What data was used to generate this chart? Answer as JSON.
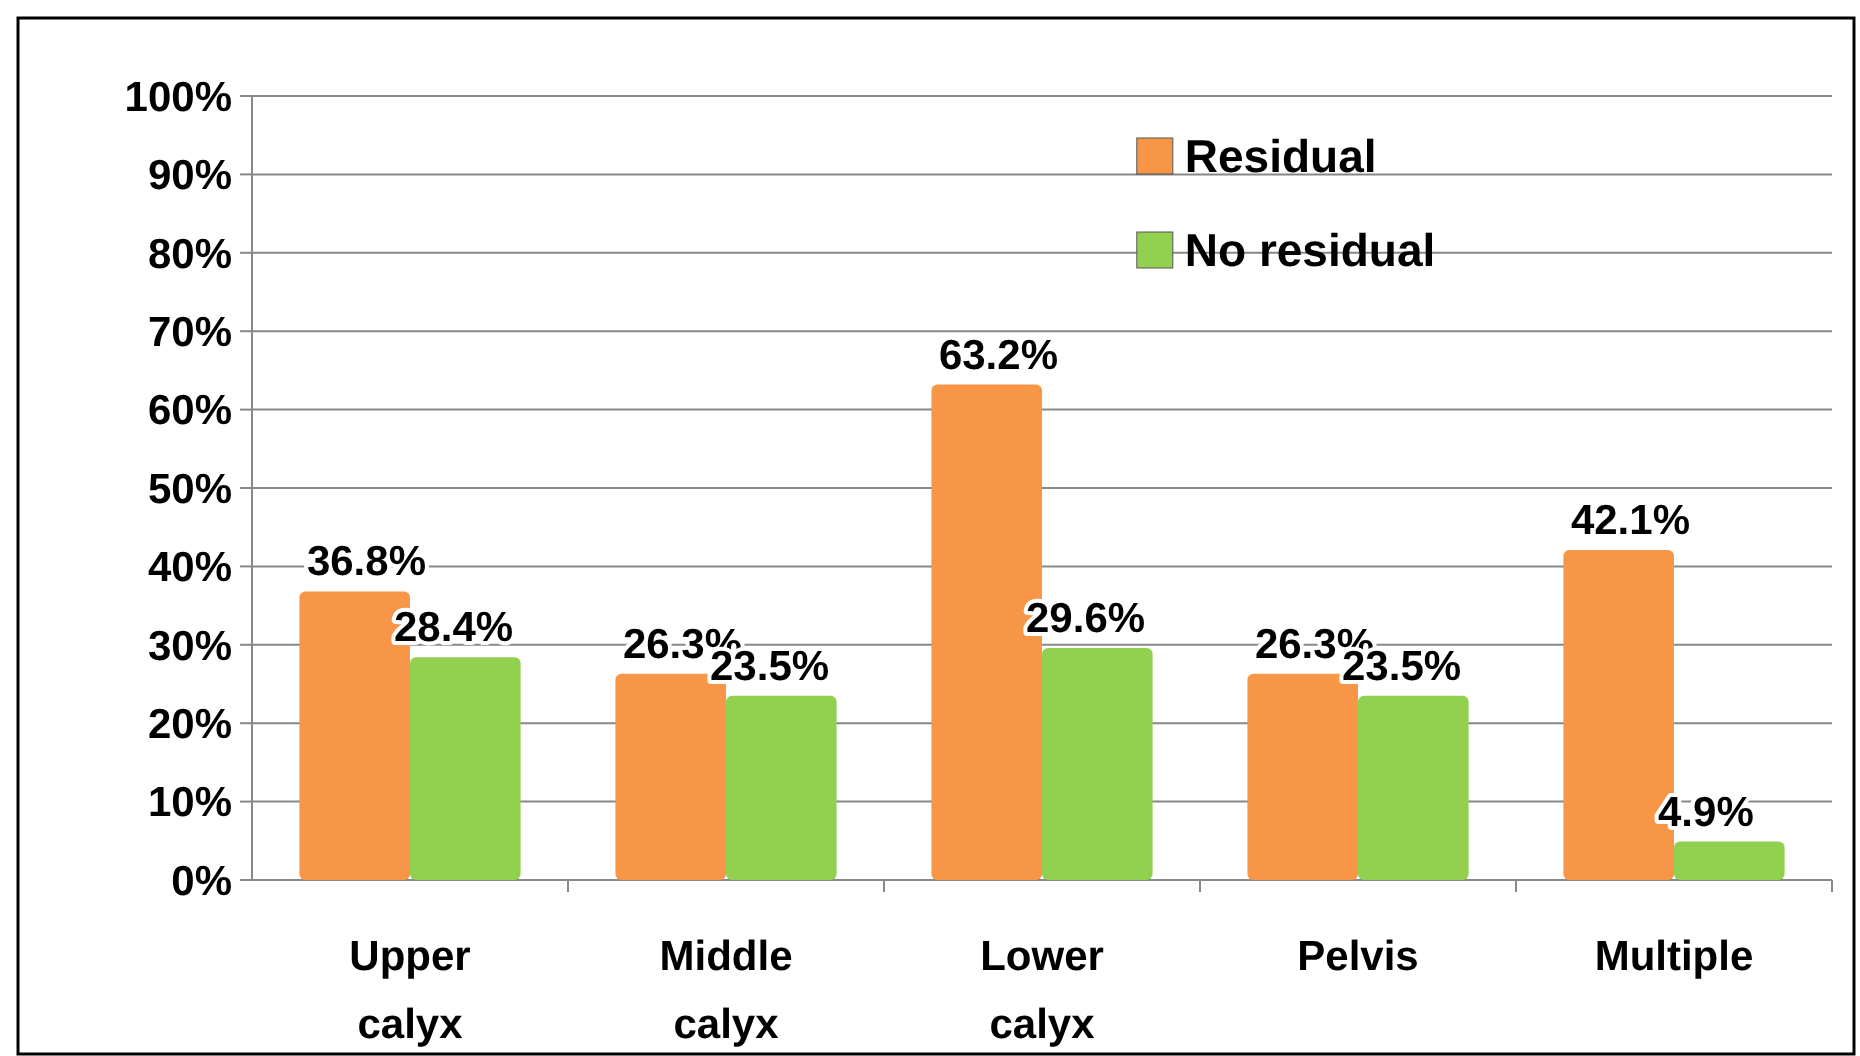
{
  "chart_data": {
    "type": "bar",
    "categories": [
      "Upper calyx",
      "Middle calyx",
      "Lower calyx",
      "Pelvis",
      "Multiple"
    ],
    "series": [
      {
        "name": "Residual",
        "color": "#f79646",
        "values": [
          36.8,
          26.3,
          63.2,
          26.3,
          42.1
        ]
      },
      {
        "name": "No residual",
        "color": "#92d050",
        "values": [
          28.4,
          23.5,
          29.6,
          23.5,
          4.9
        ]
      }
    ],
    "ylim": [
      0,
      100
    ],
    "yticks": [
      {
        "value": 0,
        "label": "0%"
      },
      {
        "value": 10,
        "label": "10%"
      },
      {
        "value": 20,
        "label": "20%"
      },
      {
        "value": 30,
        "label": "30%"
      },
      {
        "value": 40,
        "label": "40%"
      },
      {
        "value": 50,
        "label": "50%"
      },
      {
        "value": 60,
        "label": "60%"
      },
      {
        "value": 70,
        "label": "70%"
      },
      {
        "value": 80,
        "label": "80%"
      },
      {
        "value": 90,
        "label": "90%"
      },
      {
        "value": 100,
        "label": "100%"
      }
    ],
    "value_labels": [
      [
        "36.8%",
        "26.3%",
        "63.2%",
        "26.3%",
        "42.1%"
      ],
      [
        "28.4%",
        "23.5%",
        "29.6%",
        "23.5%",
        "4.9%"
      ]
    ],
    "grid": "y",
    "legend": "top right"
  }
}
